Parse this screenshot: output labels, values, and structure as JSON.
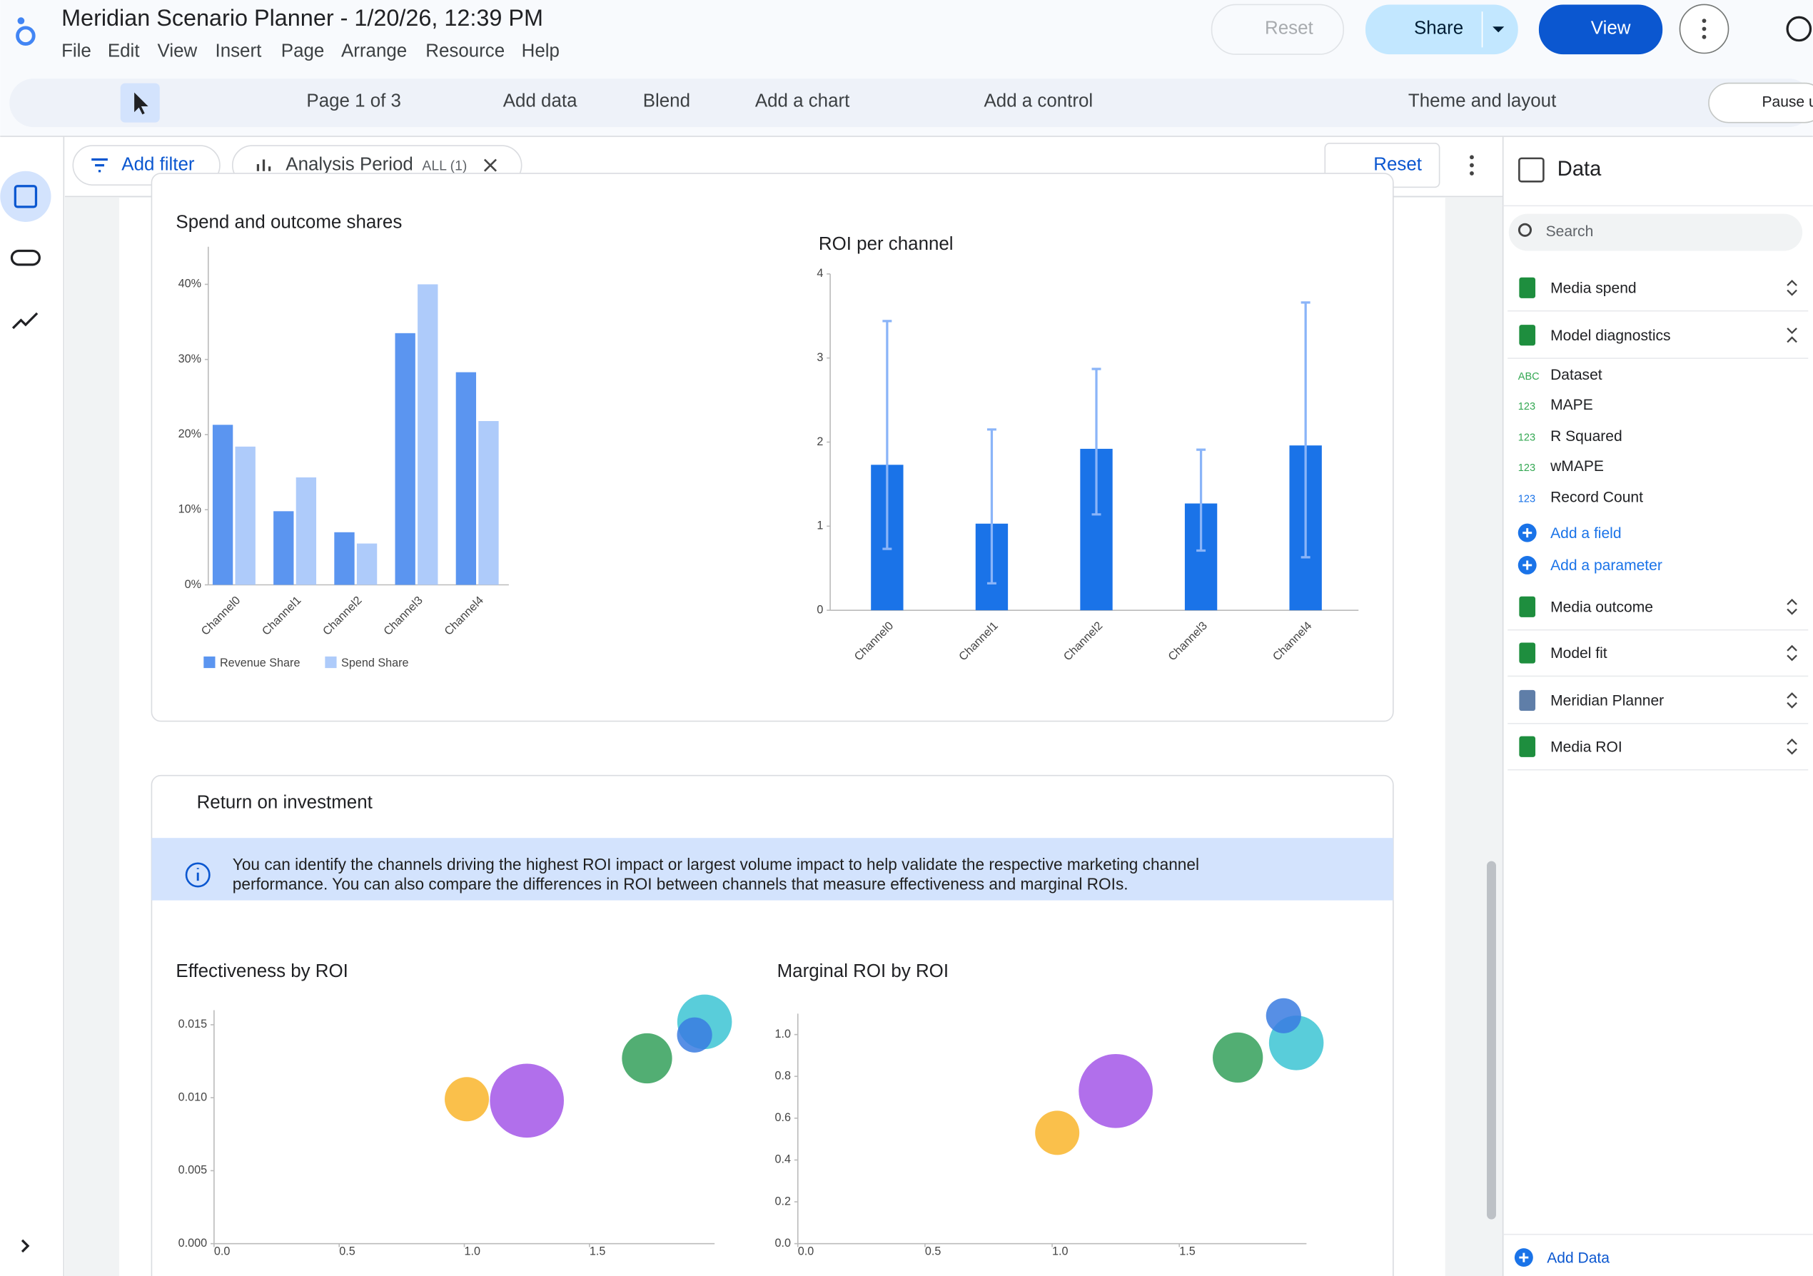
{
  "header": {
    "title": "Meridian Scenario Planner - 1/20/26, 12:39 PM",
    "menu": [
      "File",
      "Edit",
      "View",
      "Insert",
      "Page",
      "Arrange",
      "Resource",
      "Help"
    ],
    "reset": "Reset",
    "share": "Share",
    "view": "View"
  },
  "toolbar": {
    "page": "Page 1 of 3",
    "add_data": "Add data",
    "blend": "Blend",
    "add_chart": "Add a chart",
    "add_control": "Add a control",
    "theme": "Theme and layout",
    "pause": "Pause u"
  },
  "filter_bar": {
    "add_filter": "Add filter",
    "chip": "Analysis Period",
    "chip_badge": "ALL (1)",
    "reset": "Reset"
  },
  "section": {
    "title": "Return on investment",
    "info": [
      "You can identify the channels driving the highest ROI impact or largest volume impact to help validate the respective marketing channel",
      "performance. You can also compare the differences in ROI between channels that measure effectiveness and marginal ROIs."
    ]
  },
  "chart_data": [
    {
      "type": "bar",
      "title": "Spend and outcome shares",
      "categories": [
        "Channel0",
        "Channel1",
        "Channel2",
        "Channel3",
        "Channel4"
      ],
      "series": [
        {
          "name": "Revenue Share",
          "color": "#5b95f0",
          "values": [
            21.3,
            9.8,
            7.0,
            33.5,
            28.3
          ]
        },
        {
          "name": "Spend Share",
          "color": "#aecbfa",
          "values": [
            18.4,
            14.3,
            5.5,
            40.0,
            21.8
          ]
        }
      ],
      "ylim": [
        0,
        45
      ],
      "yticks": [
        {
          "value": 0,
          "label": "0%"
        },
        {
          "value": 10,
          "label": "10%"
        },
        {
          "value": 20,
          "label": "20%"
        },
        {
          "value": 30,
          "label": "30%"
        },
        {
          "value": 40,
          "label": "40%"
        }
      ],
      "grid": false,
      "legend": "bottom"
    },
    {
      "type": "bar",
      "title": "ROI per channel",
      "categories": [
        "Channel0",
        "Channel1",
        "Channel2",
        "Channel3",
        "Channel4"
      ],
      "values": [
        1.73,
        1.03,
        1.92,
        1.27,
        1.96
      ],
      "error_low": [
        0.73,
        0.32,
        1.14,
        0.71,
        0.63
      ],
      "error_high": [
        3.44,
        2.15,
        2.87,
        1.91,
        3.66
      ],
      "color": "#1a73e8",
      "error_color": "#8ab4f8",
      "ylim": [
        0,
        4
      ],
      "yticks": [
        0,
        1,
        2,
        3,
        4
      ],
      "grid": false
    },
    {
      "type": "scatter",
      "title": "Effectiveness by ROI",
      "x": [
        1.01,
        1.25,
        1.73,
        1.96,
        1.92
      ],
      "values": [
        0.0099,
        0.0098,
        0.0127,
        0.0152,
        0.0143
      ],
      "sizes": [
        14.3,
        40.0,
        18.4,
        21.8,
        9.0
      ],
      "colors": [
        "#f9b52b",
        "#a356e8",
        "#34a05a",
        "#3cc4d4",
        "#3a7be0"
      ],
      "xlim": [
        0,
        2
      ],
      "ylim": [
        0,
        0.016
      ],
      "xticks": [
        {
          "value": 0,
          "label": "0.0"
        },
        {
          "value": 0.5,
          "label": "0.5"
        },
        {
          "value": 1,
          "label": "1.0"
        },
        {
          "value": 1.5,
          "label": "1.5"
        }
      ],
      "yticks": [
        {
          "value": 0,
          "label": "0.000"
        },
        {
          "value": 0.005,
          "label": "0.005"
        },
        {
          "value": 0.01,
          "label": "0.010"
        },
        {
          "value": 0.015,
          "label": "0.015"
        }
      ],
      "grid": false
    },
    {
      "type": "scatter",
      "title": "Marginal ROI by ROI",
      "x": [
        1.02,
        1.25,
        1.73,
        1.96,
        1.91
      ],
      "values": [
        0.53,
        0.73,
        0.89,
        0.96,
        1.09
      ],
      "sizes": [
        14.3,
        40.0,
        18.4,
        21.8,
        9.0
      ],
      "colors": [
        "#f9b52b",
        "#a356e8",
        "#34a05a",
        "#3cc4d4",
        "#3a7be0"
      ],
      "xlim": [
        0,
        2
      ],
      "ylim": [
        0,
        1.1
      ],
      "xticks": [
        {
          "value": 0,
          "label": "0.0"
        },
        {
          "value": 0.5,
          "label": "0.5"
        },
        {
          "value": 1,
          "label": "1.0"
        },
        {
          "value": 1.5,
          "label": "1.5"
        }
      ],
      "yticks": [
        {
          "value": 0,
          "label": "0.0"
        },
        {
          "value": 0.2,
          "label": "0.2"
        },
        {
          "value": 0.4,
          "label": "0.4"
        },
        {
          "value": 0.6,
          "label": "0.6"
        },
        {
          "value": 0.8,
          "label": "0.8"
        },
        {
          "value": 1,
          "label": "1.0"
        }
      ],
      "grid": false
    }
  ],
  "data_panel": {
    "title": "Data",
    "search": "Search",
    "sources": [
      "Media spend",
      "Model diagnostics",
      "Media outcome",
      "Model fit",
      "Meridian Planner",
      "Media ROI"
    ],
    "fields": [
      {
        "type": "ABC",
        "name": "Dataset"
      },
      {
        "type": "123",
        "name": "MAPE"
      },
      {
        "type": "123",
        "name": "R Squared"
      },
      {
        "type": "123",
        "name": "wMAPE"
      },
      {
        "type": "123",
        "name": "Record Count"
      }
    ],
    "add_field": "Add a field",
    "add_parameter": "Add a parameter",
    "add_data": "Add Data"
  }
}
